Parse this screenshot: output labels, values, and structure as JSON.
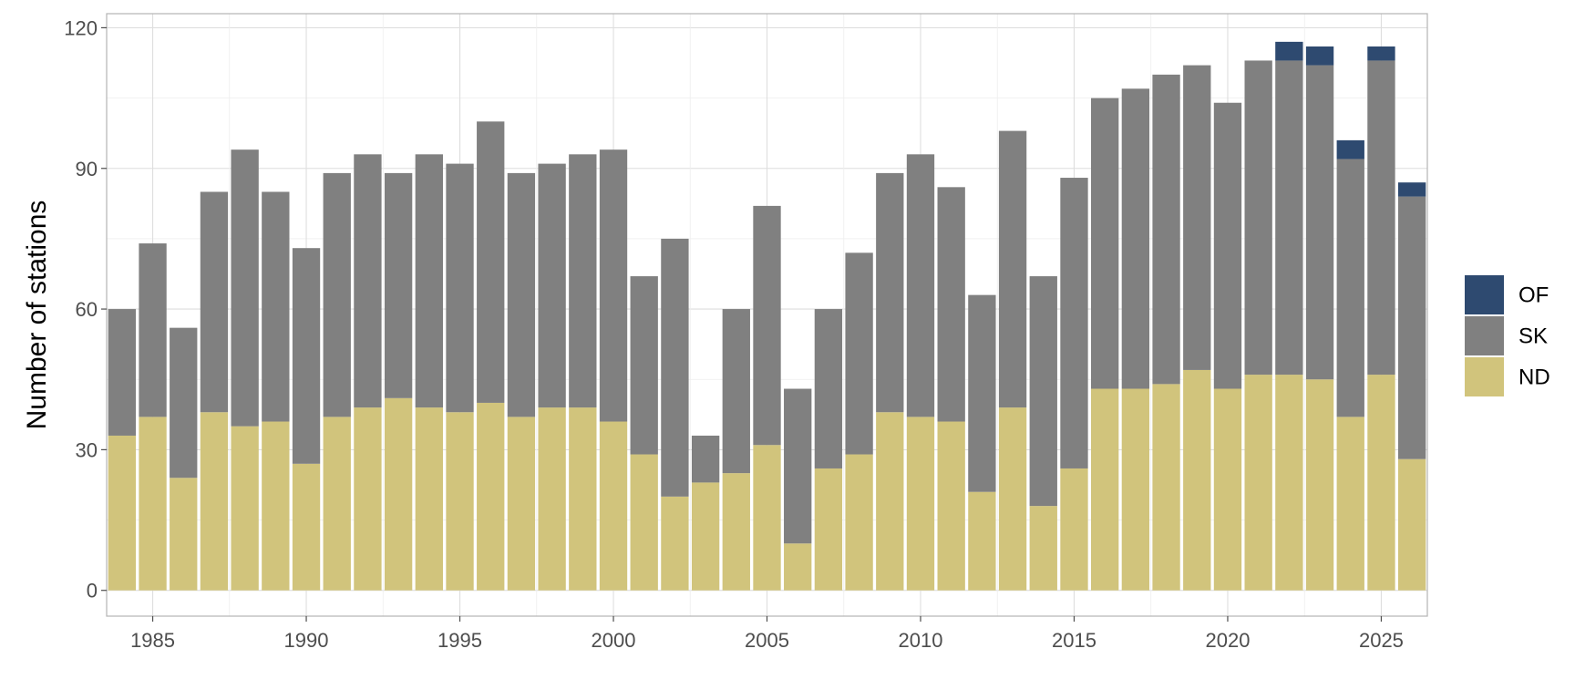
{
  "chart_data": {
    "type": "bar",
    "stacked": true,
    "x": [
      1984,
      1985,
      1986,
      1987,
      1988,
      1989,
      1990,
      1991,
      1992,
      1993,
      1994,
      1995,
      1996,
      1997,
      1998,
      1999,
      2000,
      2001,
      2002,
      2003,
      2004,
      2005,
      2006,
      2007,
      2008,
      2009,
      2010,
      2011,
      2012,
      2013,
      2014,
      2015,
      2016,
      2017,
      2018,
      2019,
      2020,
      2021,
      2022,
      2023,
      2024,
      2025,
      2026
    ],
    "series": [
      {
        "name": "ND",
        "color": "#d1c47c",
        "values": [
          33,
          37,
          24,
          38,
          35,
          36,
          27,
          37,
          39,
          41,
          39,
          38,
          40,
          37,
          39,
          39,
          36,
          29,
          20,
          23,
          25,
          31,
          10,
          26,
          29,
          38,
          37,
          36,
          21,
          39,
          18,
          26,
          43,
          43,
          44,
          47,
          43,
          46,
          46,
          45,
          37,
          46,
          28
        ]
      },
      {
        "name": "SK",
        "color": "#808080",
        "values": [
          27,
          37,
          32,
          47,
          59,
          49,
          46,
          52,
          54,
          48,
          54,
          53,
          60,
          52,
          52,
          54,
          58,
          38,
          55,
          10,
          35,
          51,
          33,
          34,
          43,
          51,
          56,
          50,
          42,
          59,
          49,
          62,
          62,
          64,
          66,
          65,
          61,
          67,
          67,
          67,
          55,
          67,
          56
        ]
      },
      {
        "name": "OF",
        "color": "#2e4a70",
        "values": [
          0,
          0,
          0,
          0,
          0,
          0,
          0,
          0,
          0,
          0,
          0,
          0,
          0,
          0,
          0,
          0,
          0,
          0,
          0,
          0,
          0,
          0,
          0,
          0,
          0,
          0,
          0,
          0,
          0,
          0,
          0,
          0,
          0,
          0,
          0,
          0,
          0,
          0,
          4,
          4,
          4,
          3,
          3
        ]
      }
    ],
    "title": "",
    "xlabel": "",
    "ylabel": "Number of stations",
    "xticks": [
      1985,
      1990,
      1995,
      2000,
      2005,
      2010,
      2015,
      2020,
      2025
    ],
    "yticks": [
      0,
      30,
      60,
      90,
      120
    ],
    "xlim": [
      1983.5,
      2026.5
    ],
    "ylim": [
      -5.5,
      123
    ],
    "grid": true,
    "legend_position": "right",
    "legend_order": [
      "OF",
      "SK",
      "ND"
    ]
  }
}
